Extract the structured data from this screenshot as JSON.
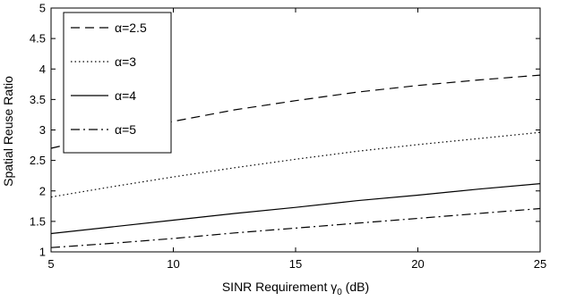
{
  "chart_data": {
    "type": "line",
    "xlabel_prefix": "SINR Requirement ",
    "xlabel_symbol": "γ",
    "xlabel_sub": "0",
    "xlabel_suffix": " (dB)",
    "ylabel": "Spatial Reuse Ratio",
    "xlim": [
      5,
      25
    ],
    "ylim": [
      1,
      5
    ],
    "xticks": [
      5,
      10,
      15,
      20,
      25
    ],
    "yticks": [
      1,
      1.5,
      2,
      2.5,
      3,
      3.5,
      4,
      4.5,
      5
    ],
    "ytick_labels": [
      "1",
      "1.5",
      "2",
      "2.5",
      "3",
      "3.5",
      "4",
      "4.5",
      "5"
    ],
    "legend_position": "top-left",
    "grid": false,
    "series": [
      {
        "name": "α=2.5",
        "dash": "dashed",
        "x": [
          5,
          7.5,
          10,
          12.5,
          15,
          17.5,
          20,
          22.5,
          25
        ],
        "y": [
          2.7,
          2.93,
          3.14,
          3.33,
          3.48,
          3.62,
          3.73,
          3.82,
          3.9
        ]
      },
      {
        "name": "α=3",
        "dash": "dotted",
        "x": [
          5,
          7.5,
          10,
          12.5,
          15,
          17.5,
          20,
          22.5,
          25
        ],
        "y": [
          1.9,
          2.07,
          2.23,
          2.38,
          2.52,
          2.65,
          2.76,
          2.86,
          2.96
        ]
      },
      {
        "name": "α=4",
        "dash": "solid",
        "x": [
          5,
          7.5,
          10,
          12.5,
          15,
          17.5,
          20,
          22.5,
          25
        ],
        "y": [
          1.3,
          1.41,
          1.52,
          1.63,
          1.73,
          1.84,
          1.93,
          2.03,
          2.12
        ]
      },
      {
        "name": "α=5",
        "dash": "dashdot",
        "x": [
          5,
          7.5,
          10,
          12.5,
          15,
          17.5,
          20,
          22.5,
          25
        ],
        "y": [
          1.07,
          1.14,
          1.22,
          1.31,
          1.39,
          1.47,
          1.55,
          1.63,
          1.71
        ]
      }
    ]
  }
}
